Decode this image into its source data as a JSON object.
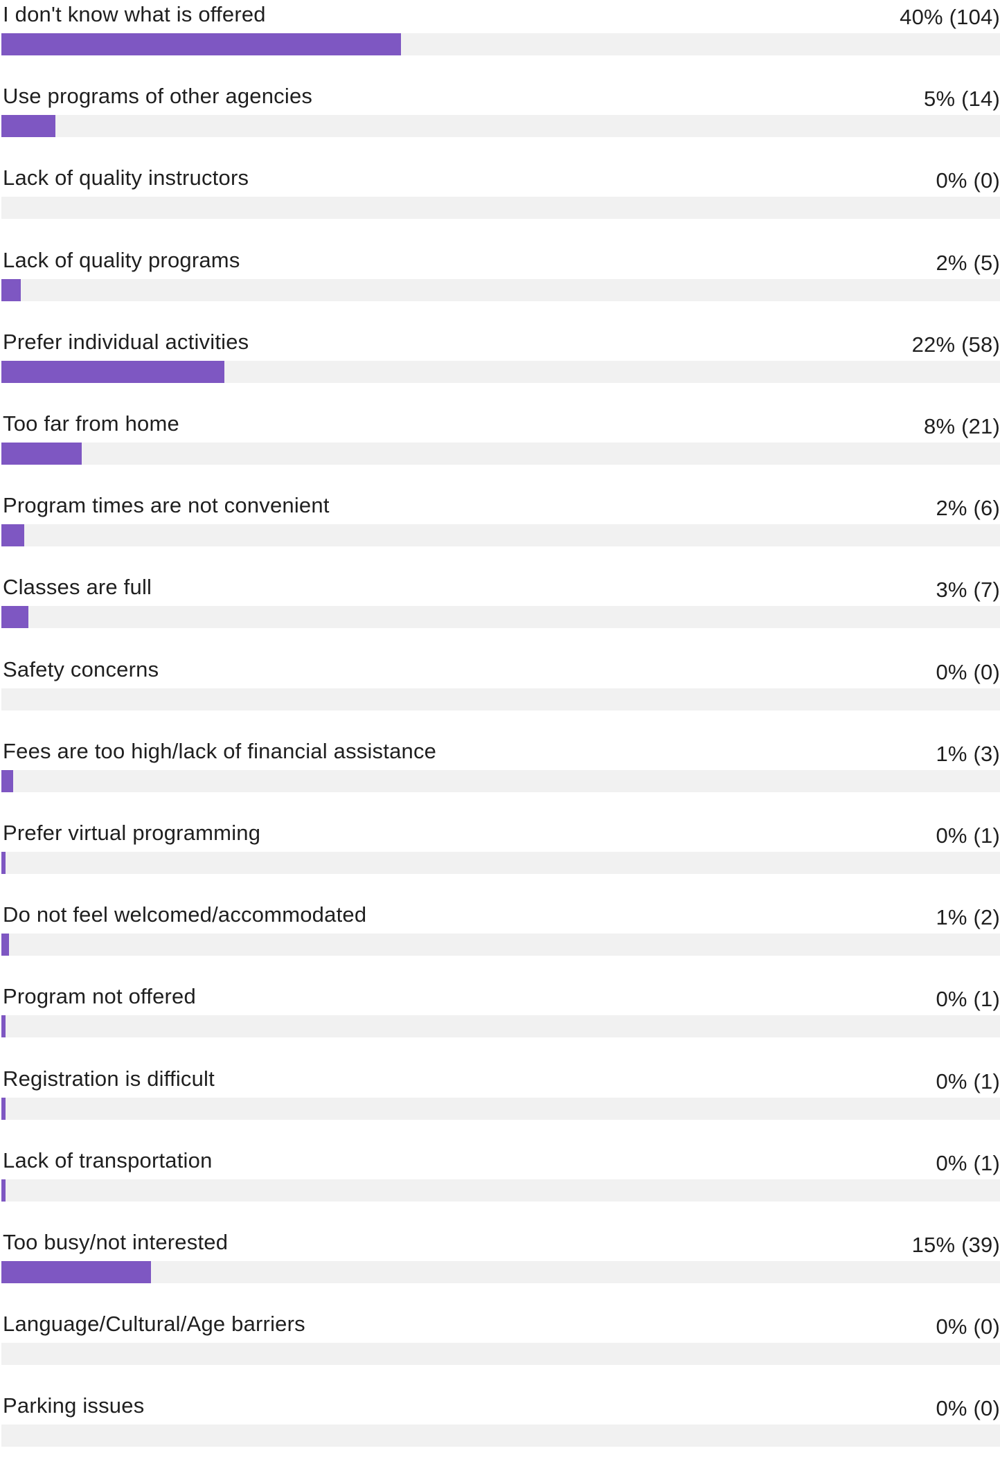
{
  "chart_data": {
    "type": "bar",
    "orientation": "horizontal",
    "colors": {
      "bar": "#7e57c2",
      "track": "#f1f1f1"
    },
    "categories": [
      "I don't know what is offered",
      "Use programs of other agencies",
      "Lack of quality instructors",
      "Lack of quality programs",
      "Prefer individual activities",
      "Too far from home",
      "Program times are not convenient",
      "Classes are full",
      "Safety concerns",
      "Fees are too high/lack of financial assistance",
      "Prefer virtual programming",
      "Do not feel welcomed/accommodated",
      "Program not offered",
      "Registration is difficult",
      "Lack of transportation",
      "Too busy/not interested",
      "Language/Cultural/Age barriers",
      "Parking issues"
    ],
    "counts": [
      104,
      14,
      0,
      5,
      58,
      21,
      6,
      7,
      0,
      3,
      1,
      2,
      1,
      1,
      1,
      39,
      0,
      0
    ],
    "value_labels": [
      "40% (104)",
      "5% (14)",
      "0% (0)",
      "2% (5)",
      "22% (58)",
      "8% (21)",
      "2% (6)",
      "3% (7)",
      "0% (0)",
      "1% (3)",
      "0% (1)",
      "1% (2)",
      "0% (1)",
      "0% (1)",
      "0% (1)",
      "15% (39)",
      "0% (0)",
      "0% (0)"
    ]
  }
}
